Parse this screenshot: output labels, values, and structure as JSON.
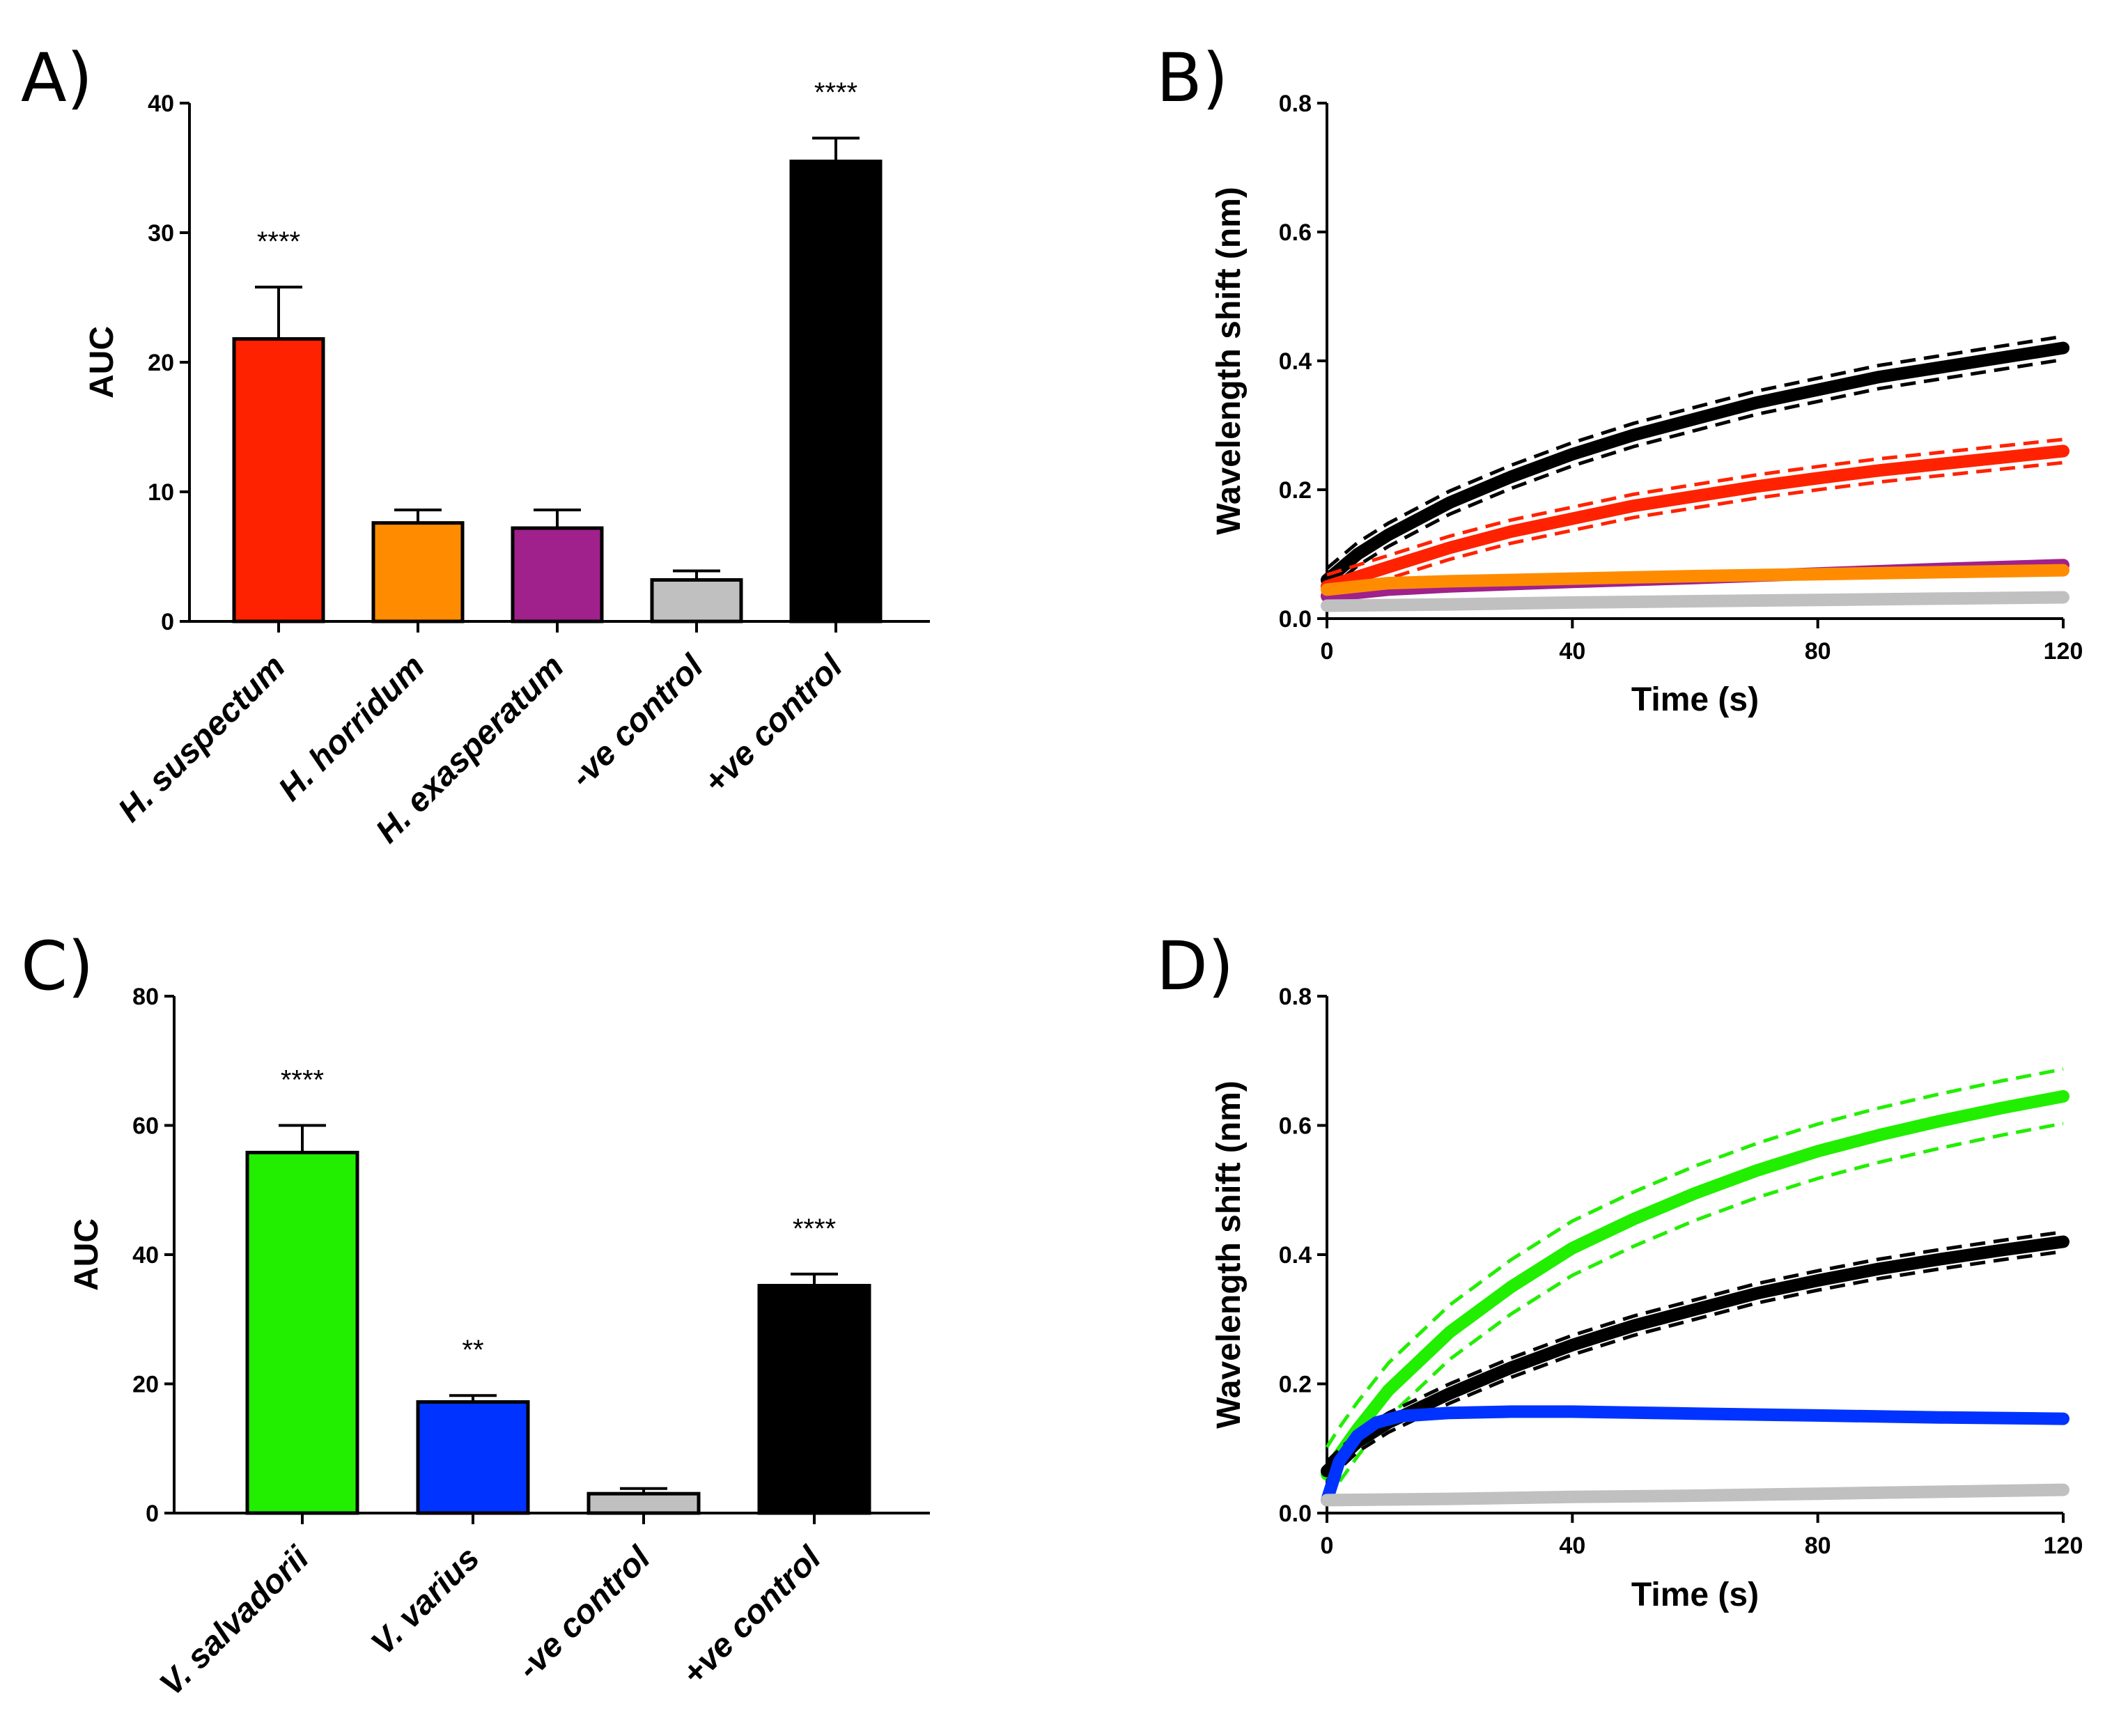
{
  "colors": {
    "red": "#ff2200",
    "orange": "#ff8c00",
    "purple": "#a0208c",
    "grey": "#c0c0c0",
    "black": "#000000",
    "green": "#22ee00",
    "blue": "#0033ff"
  },
  "chart_data": [
    {
      "panel": "A)",
      "type": "bar",
      "ylabel": "AUC",
      "ylim": [
        0,
        40
      ],
      "yticks": [
        "0",
        "10",
        "20",
        "30",
        "40"
      ],
      "categories": [
        "H. suspectum",
        "H. horridum",
        "H. exasperatum",
        "-ve control",
        "+ve control"
      ],
      "values": [
        21.8,
        7.6,
        7.2,
        3.2,
        35.5
      ],
      "errors": [
        4.0,
        1.0,
        1.4,
        0.7,
        1.8
      ],
      "significance": [
        "****",
        "",
        "",
        "",
        "****"
      ],
      "bar_colors": [
        "red",
        "orange",
        "purple",
        "grey",
        "black"
      ]
    },
    {
      "panel": "B)",
      "type": "line",
      "xlabel": "Time (s)",
      "ylabel": "Wavelength shift (nm)",
      "xlim": [
        0,
        120
      ],
      "ylim": [
        0,
        0.8
      ],
      "xticks": [
        "0",
        "40",
        "80",
        "120"
      ],
      "yticks": [
        "0.0",
        "0.2",
        "0.4",
        "0.6",
        "0.8"
      ],
      "series": [
        {
          "name": "black",
          "color": "black",
          "x": [
            0,
            5,
            10,
            20,
            30,
            40,
            50,
            60,
            70,
            80,
            90,
            100,
            110,
            120
          ],
          "y": [
            0.06,
            0.1,
            0.13,
            0.18,
            0.22,
            0.255,
            0.285,
            0.31,
            0.335,
            0.355,
            0.375,
            0.39,
            0.405,
            0.42
          ],
          "band": 0.018
        },
        {
          "name": "red",
          "color": "red",
          "x": [
            0,
            5,
            10,
            20,
            30,
            40,
            50,
            60,
            70,
            80,
            90,
            100,
            110,
            120
          ],
          "y": [
            0.05,
            0.065,
            0.08,
            0.11,
            0.135,
            0.155,
            0.175,
            0.19,
            0.205,
            0.218,
            0.23,
            0.24,
            0.25,
            0.26
          ],
          "band": 0.018
        },
        {
          "name": "purple",
          "color": "purple",
          "x": [
            0,
            10,
            20,
            40,
            60,
            80,
            100,
            120
          ],
          "y": [
            0.035,
            0.045,
            0.05,
            0.057,
            0.063,
            0.07,
            0.077,
            0.083
          ]
        },
        {
          "name": "orange",
          "color": "orange",
          "x": [
            0,
            10,
            20,
            40,
            60,
            80,
            100,
            120
          ],
          "y": [
            0.045,
            0.055,
            0.058,
            0.062,
            0.066,
            0.069,
            0.072,
            0.075
          ]
        },
        {
          "name": "grey",
          "color": "grey",
          "x": [
            0,
            20,
            40,
            60,
            80,
            100,
            120
          ],
          "y": [
            0.02,
            0.022,
            0.025,
            0.027,
            0.029,
            0.031,
            0.033
          ]
        }
      ]
    },
    {
      "panel": "C)",
      "type": "bar",
      "ylabel": "AUC",
      "ylim": [
        0,
        80
      ],
      "yticks": [
        "0",
        "20",
        "40",
        "60",
        "80"
      ],
      "categories": [
        "V. salvadorii",
        "V. varius",
        "-ve control",
        "+ve control"
      ],
      "values": [
        55.8,
        17.2,
        3.0,
        35.2
      ],
      "errors": [
        4.2,
        1.0,
        0.8,
        1.8
      ],
      "significance": [
        "****",
        "**",
        "",
        "****"
      ],
      "bar_colors": [
        "green",
        "blue",
        "grey",
        "black"
      ]
    },
    {
      "panel": "D)",
      "type": "line",
      "xlabel": "Time (s)",
      "ylabel": "Wavelength shift (nm)",
      "xlim": [
        0,
        120
      ],
      "ylim": [
        0,
        0.8
      ],
      "xticks": [
        "0",
        "40",
        "80",
        "120"
      ],
      "yticks": [
        "0.0",
        "0.2",
        "0.4",
        "0.6",
        "0.8"
      ],
      "series": [
        {
          "name": "green",
          "color": "green",
          "x": [
            0,
            2,
            5,
            10,
            20,
            30,
            40,
            50,
            60,
            70,
            80,
            90,
            100,
            110,
            120
          ],
          "y": [
            0.06,
            0.09,
            0.13,
            0.19,
            0.28,
            0.35,
            0.41,
            0.455,
            0.495,
            0.53,
            0.56,
            0.585,
            0.607,
            0.627,
            0.645
          ],
          "band": 0.042
        },
        {
          "name": "black",
          "color": "black",
          "x": [
            0,
            5,
            10,
            20,
            30,
            40,
            50,
            60,
            70,
            80,
            90,
            100,
            110,
            120
          ],
          "y": [
            0.065,
            0.11,
            0.14,
            0.185,
            0.225,
            0.26,
            0.29,
            0.315,
            0.34,
            0.36,
            0.378,
            0.393,
            0.407,
            0.42
          ],
          "band": 0.015
        },
        {
          "name": "blue",
          "color": "blue",
          "x": [
            0,
            2,
            5,
            8,
            12,
            20,
            30,
            40,
            60,
            80,
            100,
            120
          ],
          "y": [
            0.02,
            0.08,
            0.12,
            0.14,
            0.15,
            0.155,
            0.157,
            0.157,
            0.154,
            0.151,
            0.148,
            0.146
          ]
        },
        {
          "name": "grey",
          "color": "grey",
          "x": [
            0,
            20,
            40,
            60,
            80,
            100,
            120
          ],
          "y": [
            0.02,
            0.022,
            0.025,
            0.027,
            0.03,
            0.033,
            0.036
          ]
        }
      ]
    }
  ]
}
